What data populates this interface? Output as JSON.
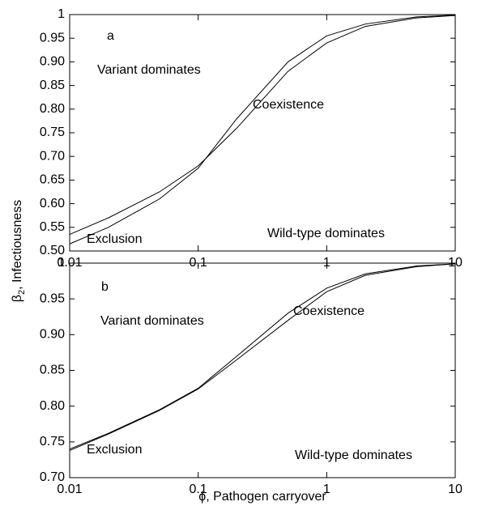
{
  "ylabel": {
    "symbol": "β",
    "subscript": "2",
    "text": ", Infectiousness"
  },
  "xlabel": "ϕ, Pathogen carryover",
  "chart_data": [
    {
      "type": "line",
      "xscale": "log",
      "xlim": [
        0.01,
        10
      ],
      "ylim": [
        0.5,
        1
      ],
      "xticks": [
        0.01,
        0.1,
        1,
        10
      ],
      "yticks": [
        {
          "value": 0.5,
          "label": "0.50"
        },
        0.55,
        {
          "value": 0.6,
          "label": "0.60"
        },
        0.65,
        {
          "value": 0.7,
          "label": "0.70"
        },
        0.75,
        {
          "value": 0.8,
          "label": "0.80"
        },
        0.85,
        {
          "value": 0.9,
          "label": "0.90"
        },
        0.95,
        1
      ],
      "annotations": [
        "a",
        "Variant dominates",
        "Coexistence",
        "Exclusion",
        "Wild-type dominates"
      ],
      "x": [
        0.01,
        0.02,
        0.05,
        0.1,
        0.2,
        0.5,
        1,
        2,
        5,
        10
      ],
      "series": [
        {
          "color": "#000000",
          "values": [
            0.535,
            0.57,
            0.625,
            0.68,
            0.76,
            0.88,
            0.94,
            0.975,
            0.993,
            0.998
          ]
        },
        {
          "color": "#000000",
          "values": [
            0.515,
            0.55,
            0.61,
            0.675,
            0.78,
            0.9,
            0.955,
            0.98,
            0.995,
            0.999
          ]
        }
      ]
    },
    {
      "type": "line",
      "xscale": "log",
      "xlim": [
        0.01,
        10
      ],
      "ylim": [
        0.7,
        1
      ],
      "xticks": [
        0.01,
        0.1,
        1,
        10
      ],
      "yticks": [
        {
          "value": 0.7,
          "label": "0.70"
        },
        0.75,
        {
          "value": 0.8,
          "label": "0.80"
        },
        0.85,
        {
          "value": 0.9,
          "label": "0.90"
        },
        0.95,
        1
      ],
      "annotations": [
        "b",
        "Variant dominates",
        "Coexistence",
        "Exclusion",
        "Wild-type dominates"
      ],
      "x": [
        0.01,
        0.02,
        0.05,
        0.1,
        0.2,
        0.5,
        1,
        2,
        5,
        10
      ],
      "series": [
        {
          "color": "#000000",
          "values": [
            0.74,
            0.762,
            0.795,
            0.825,
            0.87,
            0.93,
            0.965,
            0.985,
            0.996,
            0.999
          ]
        },
        {
          "color": "#000000",
          "values": [
            0.738,
            0.761,
            0.794,
            0.824,
            0.865,
            0.92,
            0.96,
            0.983,
            0.995,
            0.999
          ]
        }
      ]
    }
  ]
}
